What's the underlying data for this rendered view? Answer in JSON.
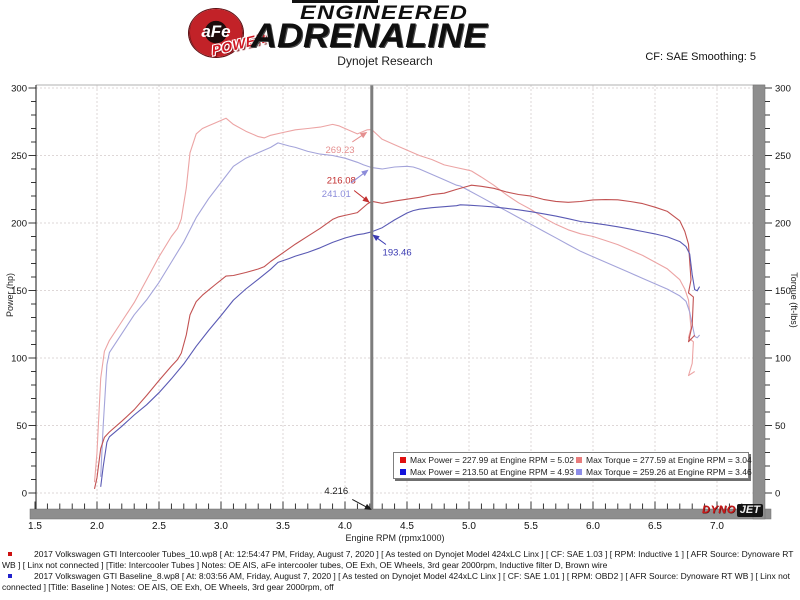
{
  "header": {
    "circle_label": "aFe",
    "circle_sub": "POWER",
    "brand_line1": "ENGINEERED",
    "brand_line2": "ADRENALINE",
    "title": "Dynojet Research",
    "cf_label": "CF: SAE Smoothing: 5"
  },
  "footer_logo": {
    "dyno": "DYNO",
    "jet": "JET"
  },
  "files": [
    {
      "bullet_color": "#cc1111",
      "text": "2017 Volkswagen GTI Intercooler Tubes_10.wp8 [ At: 12:54:47 PM, Friday, August 7, 2020 ] [ As tested on Dynojet Model 424xLC Linx ] [ CF: SAE 1.03 ] [ RPM: Inductive 1 ] [ AFR Source: Dynoware RT WB ] [ Linx not connected ] [Title: Intercooler Tubes ]  Notes: OE AIS, aFe intercooler tubes, OE Exh, OE Wheels, 3rd gear 2000rpm, Inductive filter D, Brown wire"
    },
    {
      "bullet_color": "#2222cc",
      "text": "2017 Volkswagen GTI Baseline_8.wp8 [ At: 8:03:56 AM, Friday, August 7, 2020 ] [ As tested on Dynojet Model 424xLC Linx ] [ CF: SAE 1.01 ] [ RPM: OBD2 ] [ AFR Source: Dynoware RT WB ] [ Linx not connected ] [Title: Baseline ]  Notes: OE AIS, OE Exh, OE Wheels, 3rd gear 2000rpm, off"
    }
  ],
  "chart_data": {
    "type": "line",
    "title": "Dynojet Research",
    "x_axis": {
      "label": "Engine RPM (rpmx1000)",
      "min": 1.5,
      "max": 7.29,
      "minor_step": 0.1,
      "tick_values": [
        1.5,
        2.0,
        2.5,
        3.0,
        3.5,
        4.0,
        4.5,
        5.0,
        5.5,
        6.0,
        6.5,
        7.0
      ],
      "tick_labels": [
        "1.5",
        "2.0",
        "2.5",
        "3.0",
        "3.5",
        "4.0",
        "4.5",
        "5.0",
        "5.5",
        "6.0",
        "6.5",
        "7.0"
      ],
      "grid_lines": [
        2.0,
        2.5,
        3.0,
        3.5,
        4.0,
        4.5,
        5.0,
        5.5,
        6.0,
        6.5,
        7.0
      ]
    },
    "y_left": {
      "label": "Power (hp)",
      "min": 0,
      "max": 300,
      "minor_step": 10,
      "tick_values": [
        0,
        50,
        100,
        150,
        200,
        250,
        300
      ]
    },
    "y_right": {
      "label": "Torque (ft-lbs)",
      "min": 0,
      "max": 300,
      "minor_step": 10,
      "tick_values": [
        0,
        50,
        100,
        150,
        200,
        250,
        300
      ]
    },
    "grid": true,
    "cursor": {
      "rpm": 4.216,
      "label": "4.216",
      "power_red": 216.08,
      "torque_pink": 269.23,
      "power_blue": 193.46,
      "torque_ltblue": 241.01
    },
    "series": [
      {
        "id": "intercooler-torque",
        "name": "Intercooler Tubes Torque",
        "unit": "ft-lbs",
        "color": "#eca4a4",
        "points": [
          [
            1.98,
            8
          ],
          [
            2.0,
            30
          ],
          [
            2.03,
            85
          ],
          [
            2.06,
            105
          ],
          [
            2.1,
            113
          ],
          [
            2.2,
            127
          ],
          [
            2.3,
            141
          ],
          [
            2.4,
            158
          ],
          [
            2.5,
            175
          ],
          [
            2.6,
            190
          ],
          [
            2.65,
            196
          ],
          [
            2.68,
            203
          ],
          [
            2.72,
            226
          ],
          [
            2.75,
            252
          ],
          [
            2.8,
            266
          ],
          [
            2.85,
            270
          ],
          [
            2.9,
            272
          ],
          [
            2.95,
            274
          ],
          [
            3.04,
            277.6
          ],
          [
            3.1,
            273
          ],
          [
            3.2,
            268
          ],
          [
            3.3,
            264
          ],
          [
            3.35,
            263
          ],
          [
            3.4,
            265
          ],
          [
            3.5,
            267
          ],
          [
            3.6,
            269
          ],
          [
            3.7,
            270
          ],
          [
            3.8,
            271
          ],
          [
            3.9,
            273
          ],
          [
            3.95,
            272
          ],
          [
            4.0,
            270
          ],
          [
            4.1,
            266
          ],
          [
            4.18,
            269
          ],
          [
            4.216,
            269.2
          ],
          [
            4.3,
            262
          ],
          [
            4.4,
            258
          ],
          [
            4.5,
            254
          ],
          [
            4.6,
            250
          ],
          [
            4.7,
            247
          ],
          [
            4.8,
            243
          ],
          [
            4.9,
            241
          ],
          [
            5.0,
            239
          ],
          [
            5.02,
            238.5
          ],
          [
            5.1,
            234
          ],
          [
            5.2,
            228
          ],
          [
            5.3,
            221
          ],
          [
            5.4,
            215
          ],
          [
            5.5,
            210
          ],
          [
            5.6,
            204
          ],
          [
            5.7,
            199
          ],
          [
            5.8,
            195
          ],
          [
            5.9,
            192
          ],
          [
            6.0,
            190
          ],
          [
            6.1,
            187
          ],
          [
            6.2,
            184
          ],
          [
            6.3,
            180
          ],
          [
            6.4,
            176
          ],
          [
            6.5,
            171
          ],
          [
            6.6,
            166
          ],
          [
            6.7,
            158
          ],
          [
            6.74,
            151
          ],
          [
            6.77,
            143
          ],
          [
            6.79,
            122
          ],
          [
            6.77,
            115
          ],
          [
            6.81,
            112
          ],
          [
            6.8,
            96
          ],
          [
            6.77,
            87
          ],
          [
            6.82,
            90
          ]
        ]
      },
      {
        "id": "baseline-torque",
        "name": "Baseline Torque",
        "unit": "ft-lbs",
        "color": "#a4a4da",
        "points": [
          [
            2.03,
            12
          ],
          [
            2.05,
            50
          ],
          [
            2.08,
            95
          ],
          [
            2.1,
            104
          ],
          [
            2.2,
            118
          ],
          [
            2.3,
            132
          ],
          [
            2.4,
            143
          ],
          [
            2.5,
            156
          ],
          [
            2.6,
            171
          ],
          [
            2.7,
            186
          ],
          [
            2.8,
            204
          ],
          [
            2.9,
            218
          ],
          [
            3.0,
            230
          ],
          [
            3.1,
            242
          ],
          [
            3.2,
            248
          ],
          [
            3.3,
            252
          ],
          [
            3.4,
            256
          ],
          [
            3.46,
            259.3
          ],
          [
            3.55,
            257
          ],
          [
            3.6,
            256
          ],
          [
            3.7,
            253
          ],
          [
            3.8,
            251
          ],
          [
            3.9,
            250
          ],
          [
            4.0,
            248
          ],
          [
            4.1,
            245
          ],
          [
            4.15,
            243
          ],
          [
            4.216,
            241
          ],
          [
            4.3,
            240
          ],
          [
            4.4,
            241.5
          ],
          [
            4.5,
            242
          ],
          [
            4.55,
            241.5
          ],
          [
            4.6,
            240
          ],
          [
            4.7,
            236
          ],
          [
            4.8,
            232
          ],
          [
            4.9,
            228
          ],
          [
            4.93,
            227.4
          ],
          [
            5.0,
            224
          ],
          [
            5.1,
            219
          ],
          [
            5.2,
            214
          ],
          [
            5.3,
            209
          ],
          [
            5.4,
            204
          ],
          [
            5.5,
            199
          ],
          [
            5.6,
            194
          ],
          [
            5.7,
            189
          ],
          [
            5.8,
            184
          ],
          [
            5.9,
            179
          ],
          [
            6.0,
            175
          ],
          [
            6.1,
            171
          ],
          [
            6.2,
            167
          ],
          [
            6.3,
            163
          ],
          [
            6.4,
            159
          ],
          [
            6.5,
            155
          ],
          [
            6.6,
            151
          ],
          [
            6.7,
            146
          ],
          [
            6.75,
            142
          ],
          [
            6.78,
            134
          ],
          [
            6.8,
            125
          ],
          [
            6.82,
            116
          ],
          [
            6.84,
            115
          ],
          [
            6.86,
            117
          ]
        ]
      },
      {
        "id": "intercooler-power",
        "name": "Intercooler Tubes Power",
        "unit": "hp",
        "color": "#c25252",
        "points": [
          [
            1.98,
            3
          ],
          [
            2.0,
            11.4
          ],
          [
            2.03,
            32.9
          ],
          [
            2.06,
            41.2
          ],
          [
            2.1,
            45.2
          ],
          [
            2.2,
            53.2
          ],
          [
            2.3,
            61.7
          ],
          [
            2.4,
            72.2
          ],
          [
            2.5,
            83.3
          ],
          [
            2.6,
            94
          ],
          [
            2.65,
            98.9
          ],
          [
            2.68,
            103.6
          ],
          [
            2.72,
            117.1
          ],
          [
            2.75,
            131.9
          ],
          [
            2.8,
            141.8
          ],
          [
            2.85,
            146.5
          ],
          [
            2.9,
            150.3
          ],
          [
            2.95,
            154.1
          ],
          [
            3.04,
            160.7
          ],
          [
            3.1,
            161.1
          ],
          [
            3.2,
            163.3
          ],
          [
            3.3,
            165.9
          ],
          [
            3.35,
            167.7
          ],
          [
            3.4,
            171.5
          ],
          [
            3.5,
            177.9
          ],
          [
            3.6,
            184.4
          ],
          [
            3.7,
            190.2
          ],
          [
            3.8,
            196.1
          ],
          [
            3.9,
            202.7
          ],
          [
            3.95,
            204.6
          ],
          [
            4.0,
            205.6
          ],
          [
            4.1,
            207.7
          ],
          [
            4.18,
            214.1
          ],
          [
            4.216,
            216.1
          ],
          [
            4.3,
            214.6
          ],
          [
            4.4,
            216.2
          ],
          [
            4.5,
            217.6
          ],
          [
            4.6,
            219
          ],
          [
            4.7,
            221
          ],
          [
            4.8,
            222.1
          ],
          [
            4.9,
            224.9
          ],
          [
            5.0,
            227.5
          ],
          [
            5.02,
            228
          ],
          [
            5.1,
            227.2
          ],
          [
            5.2,
            225.7
          ],
          [
            5.3,
            223
          ],
          [
            5.4,
            221.1
          ],
          [
            5.5,
            219.9
          ],
          [
            5.6,
            217.5
          ],
          [
            5.7,
            216
          ],
          [
            5.8,
            215.3
          ],
          [
            5.9,
            215.9
          ],
          [
            6.0,
            217.1
          ],
          [
            6.1,
            217.3
          ],
          [
            6.2,
            217.2
          ],
          [
            6.3,
            215.9
          ],
          [
            6.4,
            214.4
          ],
          [
            6.5,
            211.7
          ],
          [
            6.6,
            208.6
          ],
          [
            6.7,
            201.6
          ],
          [
            6.74,
            193.8
          ],
          [
            6.77,
            184.3
          ],
          [
            6.79,
            157.9
          ],
          [
            6.77,
            148.2
          ],
          [
            6.81,
            145.2
          ],
          [
            6.8,
            124.3
          ],
          [
            6.77,
            112.1
          ],
          [
            6.82,
            116.9
          ]
        ]
      },
      {
        "id": "baseline-power",
        "name": "Baseline Power",
        "unit": "hp",
        "color": "#5a5ab4",
        "points": [
          [
            2.03,
            4.6
          ],
          [
            2.05,
            19.5
          ],
          [
            2.08,
            37.6
          ],
          [
            2.1,
            41.6
          ],
          [
            2.2,
            49.4
          ],
          [
            2.3,
            57.8
          ],
          [
            2.4,
            65.3
          ],
          [
            2.5,
            74.3
          ],
          [
            2.6,
            84.6
          ],
          [
            2.7,
            95.6
          ],
          [
            2.8,
            108.7
          ],
          [
            2.9,
            120.4
          ],
          [
            3.0,
            131.4
          ],
          [
            3.1,
            142.9
          ],
          [
            3.2,
            151.1
          ],
          [
            3.3,
            158.3
          ],
          [
            3.4,
            165.7
          ],
          [
            3.46,
            170.8
          ],
          [
            3.55,
            173.7
          ],
          [
            3.6,
            175.5
          ],
          [
            3.7,
            178.2
          ],
          [
            3.8,
            181.6
          ],
          [
            3.9,
            185.6
          ],
          [
            4.0,
            188.9
          ],
          [
            4.1,
            191.3
          ],
          [
            4.15,
            192
          ],
          [
            4.216,
            193.5
          ],
          [
            4.3,
            196.5
          ],
          [
            4.4,
            202.3
          ],
          [
            4.5,
            207.4
          ],
          [
            4.55,
            209.2
          ],
          [
            4.6,
            210.2
          ],
          [
            4.7,
            211.3
          ],
          [
            4.8,
            212.1
          ],
          [
            4.9,
            212.8
          ],
          [
            4.93,
            213.5
          ],
          [
            5.0,
            213.2
          ],
          [
            5.1,
            212.6
          ],
          [
            5.2,
            211.9
          ],
          [
            5.3,
            210.9
          ],
          [
            5.4,
            209.8
          ],
          [
            5.5,
            208.4
          ],
          [
            5.6,
            206.8
          ],
          [
            5.7,
            205.1
          ],
          [
            5.8,
            203.2
          ],
          [
            5.9,
            201.1
          ],
          [
            6.0,
            199.9
          ],
          [
            6.1,
            198.7
          ],
          [
            6.2,
            197.2
          ],
          [
            6.3,
            195.5
          ],
          [
            6.4,
            193.7
          ],
          [
            6.5,
            191.9
          ],
          [
            6.6,
            189.7
          ],
          [
            6.7,
            186.2
          ],
          [
            6.75,
            182.5
          ],
          [
            6.78,
            177
          ],
          [
            6.8,
            161.8
          ],
          [
            6.82,
            150.7
          ],
          [
            6.84,
            149.8
          ],
          [
            6.86,
            152.9
          ]
        ]
      }
    ],
    "annotations": [
      {
        "text": "269.23",
        "color": "#e59090",
        "label_rpm": 3.96,
        "label_val": 254,
        "tip_rpm": 4.18,
        "tip_val": 267.5
      },
      {
        "text": "216.08",
        "color": "#c22f2f",
        "label_rpm": 3.97,
        "label_val": 231.5,
        "tip_rpm": 4.2,
        "tip_val": 215
      },
      {
        "text": "241.01",
        "color": "#8c8cda",
        "label_rpm": 3.93,
        "label_val": 221.5,
        "tip_rpm": 4.19,
        "tip_val": 239.5
      },
      {
        "text": "193.46",
        "color": "#3a3ab2",
        "label_rpm": 4.42,
        "label_val": 178,
        "tip_rpm": 4.22,
        "tip_val": 191.5
      },
      {
        "text": "4.216",
        "color": "#1a1a1a",
        "label_rpm": 3.93,
        "label_val": 1.5,
        "tip_rpm": 4.216,
        "tip_val": -12.5
      }
    ],
    "legend": {
      "position": "bottom-right",
      "entries": [
        {
          "marker": "#e01010",
          "label": "Max Power = 227.99 at Engine RPM = 5.02"
        },
        {
          "marker": "#e87c7c",
          "label": "Max Torque = 277.59 at Engine RPM = 3.04"
        },
        {
          "marker": "#1414dc",
          "label": "Max Power = 213.50 at Engine RPM = 4.93"
        },
        {
          "marker": "#8c8ce8",
          "label": "Max Torque = 259.26 at Engine RPM = 3.46"
        }
      ]
    }
  }
}
